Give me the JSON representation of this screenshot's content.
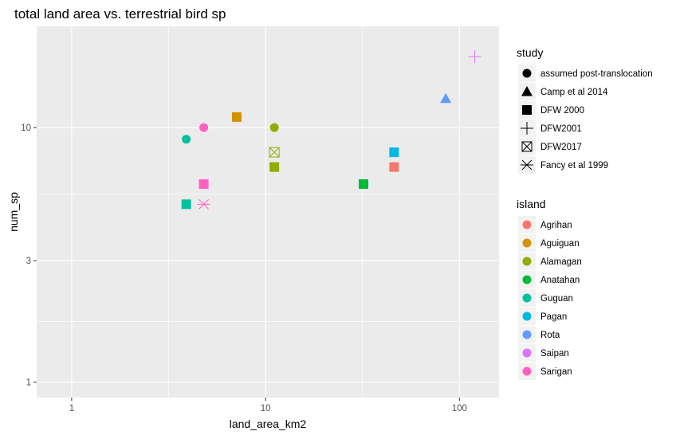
{
  "chart_data": {
    "type": "scatter",
    "title": "total land area vs. terrestrial bird sp",
    "xlabel": "land_area_km2",
    "ylabel": "num_sp",
    "x_scale": "log10",
    "y_scale": "log10",
    "xlim": [
      0.66,
      160
    ],
    "ylim": [
      0.87,
      25
    ],
    "x_ticks": [
      {
        "value": 1,
        "label": "1"
      },
      {
        "value": 10,
        "label": "10"
      },
      {
        "value": 100,
        "label": "100"
      }
    ],
    "y_ticks": [
      {
        "value": 1,
        "label": "1"
      },
      {
        "value": 3,
        "label": "3"
      },
      {
        "value": 10,
        "label": "10"
      }
    ],
    "grid": true,
    "legend_position": "right",
    "shape_legend": {
      "title": "study",
      "entries": [
        {
          "label": "assumed post-translocation",
          "shape": "circle"
        },
        {
          "label": "Camp et al 2014",
          "shape": "triangle"
        },
        {
          "label": "DFW 2000",
          "shape": "square"
        },
        {
          "label": "DFW2001",
          "shape": "plus"
        },
        {
          "label": "DFW2017",
          "shape": "square-cross"
        },
        {
          "label": "Fancy et al 1999",
          "shape": "asterisk"
        }
      ]
    },
    "color_legend": {
      "title": "island",
      "entries": [
        {
          "label": "Agrihan",
          "color": "#F8766D"
        },
        {
          "label": "Aguiguan",
          "color": "#D39200"
        },
        {
          "label": "Alamagan",
          "color": "#93AA00"
        },
        {
          "label": "Anatahan",
          "color": "#00BA38"
        },
        {
          "label": "Guguan",
          "color": "#00C19F"
        },
        {
          "label": "Pagan",
          "color": "#00B9E3"
        },
        {
          "label": "Rota",
          "color": "#619CFF"
        },
        {
          "label": "Saipan",
          "color": "#DB72FB"
        },
        {
          "label": "Sarigan",
          "color": "#FF61C3"
        }
      ]
    },
    "points": [
      {
        "x": 3.9,
        "y": 9.0,
        "island": "Guguan",
        "study": "assumed post-translocation"
      },
      {
        "x": 4.8,
        "y": 10.0,
        "island": "Sarigan",
        "study": "assumed post-translocation"
      },
      {
        "x": 11.1,
        "y": 10.0,
        "island": "Alamagan",
        "study": "assumed post-translocation"
      },
      {
        "x": 85.0,
        "y": 13.0,
        "island": "Rota",
        "study": "Camp et al 2014"
      },
      {
        "x": 7.1,
        "y": 11.0,
        "island": "Aguiguan",
        "study": "DFW 2000"
      },
      {
        "x": 11.1,
        "y": 7.0,
        "island": "Alamagan",
        "study": "DFW 2000"
      },
      {
        "x": 4.8,
        "y": 6.0,
        "island": "Sarigan",
        "study": "DFW 2000"
      },
      {
        "x": 3.9,
        "y": 5.0,
        "island": "Guguan",
        "study": "DFW 2000"
      },
      {
        "x": 32.0,
        "y": 6.0,
        "island": "Anatahan",
        "study": "DFW 2000"
      },
      {
        "x": 46.0,
        "y": 8.0,
        "island": "Pagan",
        "study": "DFW 2000"
      },
      {
        "x": 46.0,
        "y": 7.0,
        "island": "Agrihan",
        "study": "DFW 2000"
      },
      {
        "x": 120.0,
        "y": 19.0,
        "island": "Saipan",
        "study": "DFW2001"
      },
      {
        "x": 11.1,
        "y": 8.0,
        "island": "Alamagan",
        "study": "DFW2017"
      },
      {
        "x": 4.8,
        "y": 5.0,
        "island": "Sarigan",
        "study": "Fancy et al 1999"
      }
    ]
  }
}
